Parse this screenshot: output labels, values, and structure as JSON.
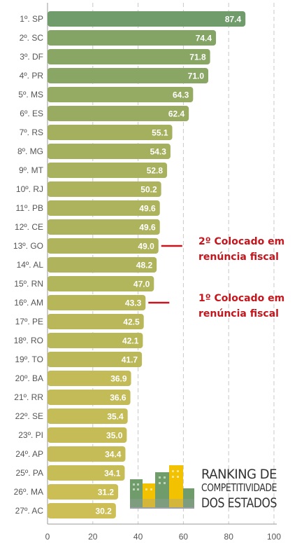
{
  "chart_data": {
    "type": "bar",
    "orientation": "horizontal",
    "categories": [
      "1º. SP",
      "2º. SC",
      "3º. DF",
      "4º. PR",
      "5º. MS",
      "6º. ES",
      "7º. RS",
      "8º. MG",
      "9º. MT",
      "10º. RJ",
      "11º. PB",
      "12º. CE",
      "13º. GO",
      "14º. AL",
      "15º. RN",
      "16º. AM",
      "17º. PE",
      "18º. RO",
      "19º. TO",
      "20º. BA",
      "21º. RR",
      "22º. SE",
      "23º. PI",
      "24º. AP",
      "25º. PA",
      "26º. MA",
      "27º. AC"
    ],
    "values": [
      87.4,
      74.4,
      71.8,
      71.0,
      64.3,
      62.4,
      55.1,
      54.3,
      52.8,
      50.2,
      49.6,
      49.6,
      49.0,
      48.2,
      47.0,
      43.3,
      42.5,
      42.1,
      41.7,
      36.9,
      36.6,
      35.4,
      35.0,
      34.4,
      34.1,
      31.2,
      30.2
    ],
    "value_labels": [
      "87.4",
      "74.4",
      "71.8",
      "71.0",
      "64.3",
      "62.4",
      "55.1",
      "54.3",
      "52.8",
      "50.2",
      "49.6",
      "49.6",
      "49.0",
      "48.2",
      "47.0",
      "43.3",
      "42.5",
      "42.1",
      "41.7",
      "36.9",
      "36.6",
      "35.4",
      "35.0",
      "34.4",
      "34.1",
      "31.2",
      "30.2"
    ],
    "xlim": [
      0,
      100
    ],
    "xticks": [
      "0",
      "20",
      "40",
      "60",
      "80",
      "100"
    ],
    "grid": "vertical-dashed",
    "color_high": "#6f9c6a",
    "color_low": "#cdbf55",
    "annotations": [
      {
        "category": "13º. GO",
        "lines": [
          "2º Colocado em",
          "renúncia fiscal"
        ],
        "color": "#c4161c"
      },
      {
        "category": "16º. AM",
        "lines": [
          "1º Colocado em",
          "renúncia fiscal"
        ],
        "color": "#c4161c"
      }
    ]
  },
  "logo": {
    "lines": [
      "RANKING DE",
      "COMPETITIVIDADE",
      "DOS ESTADOS"
    ],
    "colors": [
      "#6f9c6a",
      "#f2c200",
      "#9aa0a6"
    ]
  }
}
